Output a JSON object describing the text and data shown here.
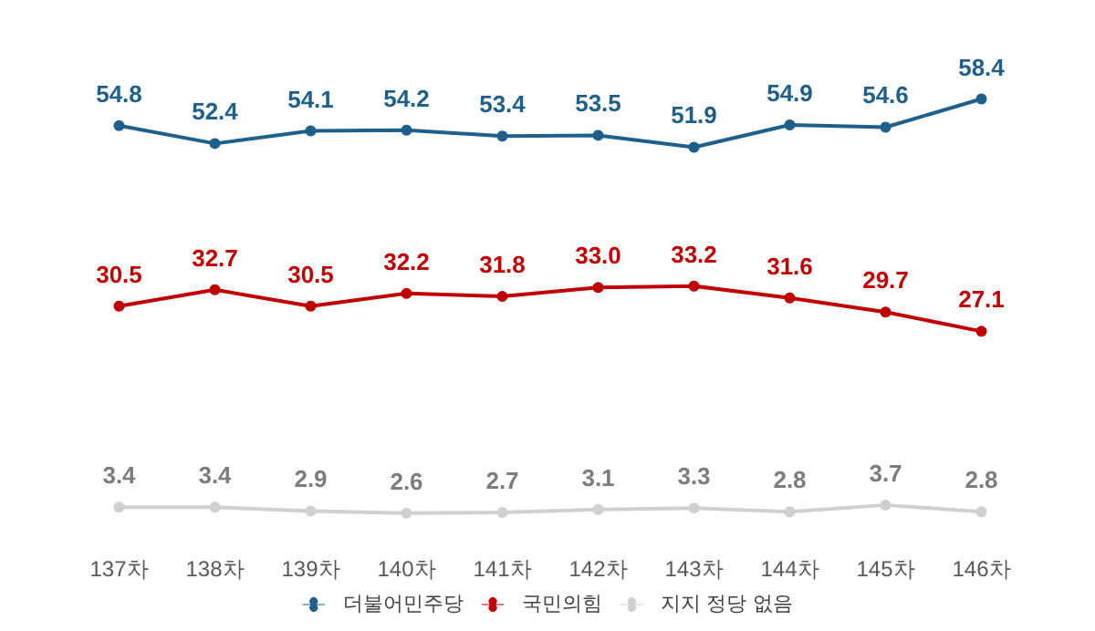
{
  "chart_data": {
    "type": "line",
    "categories": [
      "137차",
      "138차",
      "139차",
      "140차",
      "141차",
      "142차",
      "143차",
      "144차",
      "145차",
      "146차"
    ],
    "series": [
      {
        "name": "더불어민주당",
        "color": "#1f5f8b",
        "values": [
          54.8,
          52.4,
          54.1,
          54.2,
          53.4,
          53.5,
          51.9,
          54.9,
          54.6,
          58.4
        ]
      },
      {
        "name": "국민의힘",
        "color": "#c00000",
        "values": [
          30.5,
          32.7,
          30.5,
          32.2,
          31.8,
          33.0,
          33.2,
          31.6,
          29.7,
          27.1
        ],
        "value_labels": [
          "30.5",
          "32.7",
          "30.5",
          "32.2",
          "31.8",
          "33.0",
          "33.2",
          "31.6",
          "29.7",
          "27.1"
        ]
      },
      {
        "name": "지지 정당 없음",
        "color": "#d0d0d0",
        "values": [
          3.4,
          3.4,
          2.9,
          2.6,
          2.7,
          3.1,
          3.3,
          2.8,
          3.7,
          2.8
        ]
      }
    ],
    "data_labels": true,
    "legend": "bottom",
    "grid": false,
    "marker": "circle",
    "line_style": "solid"
  }
}
